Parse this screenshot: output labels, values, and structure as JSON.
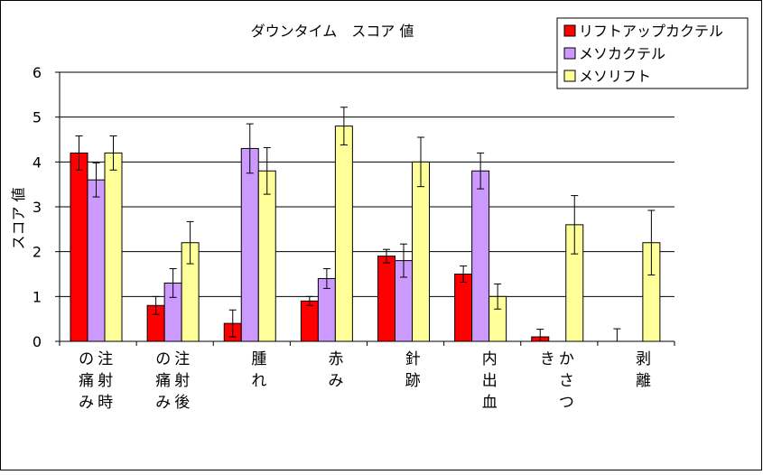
{
  "chart_data": {
    "type": "bar",
    "title": "ダウンタイム　スコア 値",
    "ylabel": "スコア 値",
    "xlabel": "",
    "ylim": [
      0,
      6
    ],
    "yticks": [
      0,
      1,
      2,
      3,
      4,
      5,
      6
    ],
    "grid": true,
    "legend_position": "top-right",
    "categories": [
      "注射時の痛み",
      "注射後の痛み",
      "腫れ",
      "赤み",
      "針跡",
      "内出血",
      "かさつき",
      "剥離"
    ],
    "series": [
      {
        "name": "リフトアップカクテル",
        "color": "#ff0000",
        "values": [
          4.2,
          0.8,
          0.4,
          0.9,
          1.9,
          1.5,
          0.1,
          0.0
        ],
        "errors": [
          0.38,
          0.2,
          0.3,
          0.1,
          0.15,
          0.18,
          0.17,
          0.28
        ]
      },
      {
        "name": "メソカクテル",
        "color": "#cc99ff",
        "values": [
          3.6,
          1.3,
          4.3,
          1.4,
          1.8,
          3.8,
          0.0,
          0.0
        ],
        "errors": [
          0.38,
          0.32,
          0.55,
          0.22,
          0.37,
          0.4,
          0.0,
          0.0
        ]
      },
      {
        "name": "メソリフト",
        "color": "#ffff99",
        "values": [
          4.2,
          2.2,
          3.8,
          4.8,
          4.0,
          1.0,
          2.6,
          2.2
        ],
        "errors": [
          0.38,
          0.47,
          0.52,
          0.42,
          0.55,
          0.28,
          0.65,
          0.72
        ]
      }
    ]
  }
}
